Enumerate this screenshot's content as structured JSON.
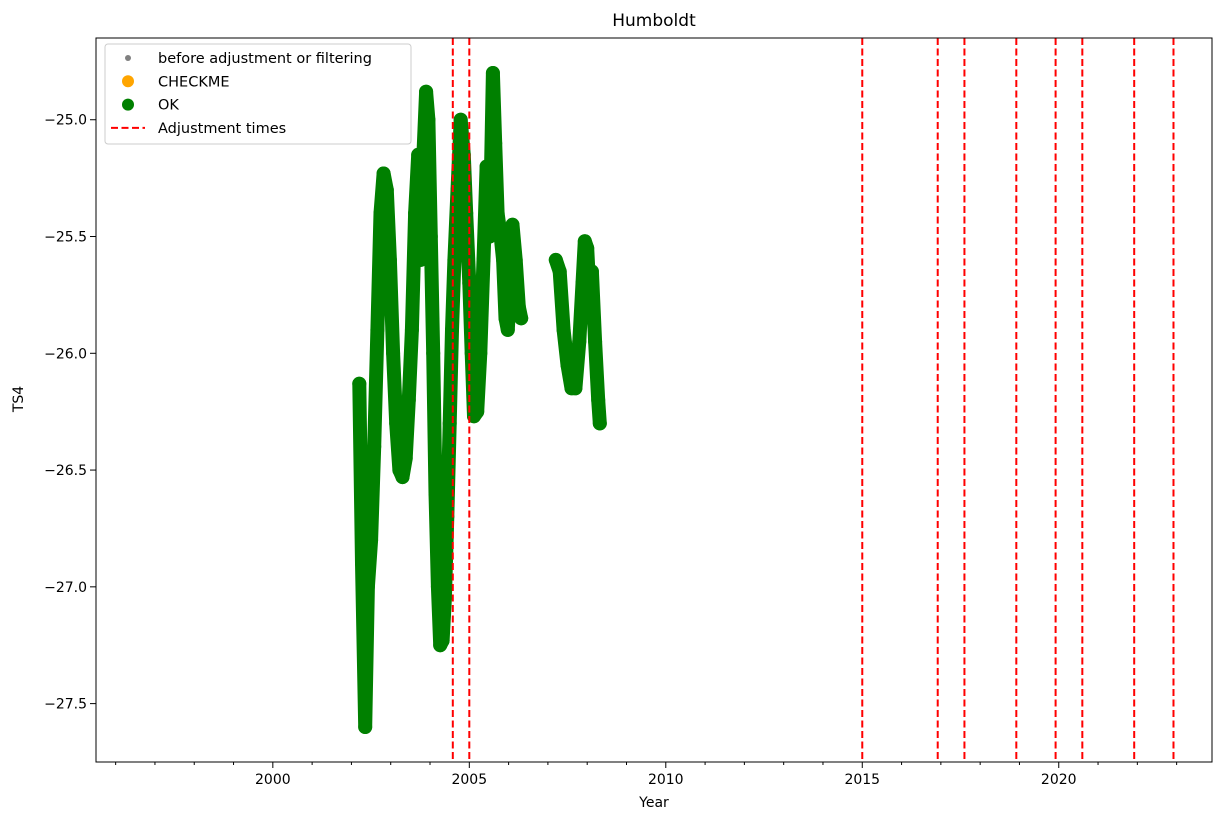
{
  "chart_data": {
    "type": "scatter",
    "title": "Humboldt",
    "xlabel": "Year",
    "ylabel": "TS4",
    "xlim": [
      1995.5,
      2023.9
    ],
    "ylim": [
      -27.75,
      -24.65
    ],
    "x_ticks": [
      2000,
      2005,
      2010,
      2015,
      2020
    ],
    "x_tick_labels": [
      "2000",
      "2005",
      "2010",
      "2015",
      "2020"
    ],
    "y_ticks": [
      -27.5,
      -27.0,
      -26.5,
      -26.0,
      -25.5,
      -25.0
    ],
    "y_tick_labels": [
      "−27.5",
      "−27.0",
      "−26.5",
      "−26.0",
      "−25.5",
      "−25.0"
    ],
    "grid": false,
    "legend": {
      "placement": "top-left",
      "entries": [
        {
          "label": "before adjustment or filtering",
          "marker": "small-dot",
          "color": "#808080"
        },
        {
          "label": "CHECKME",
          "marker": "dot",
          "color": "#ffa500"
        },
        {
          "label": "OK",
          "marker": "dot",
          "color": "#008000"
        },
        {
          "label": "Adjustment times",
          "marker": "dashed-line",
          "color": "#ff0000"
        }
      ]
    },
    "series": [
      {
        "name": "OK",
        "color": "#008000",
        "segments": [
          {
            "x": [
              2002.2,
              2002.27,
              2002.35,
              2002.42,
              2002.5,
              2002.58,
              2002.66,
              2002.74,
              2002.82,
              2002.9,
              2002.98,
              2003.06,
              2003.14,
              2003.22,
              2003.3,
              2003.38,
              2003.46,
              2003.54,
              2003.62,
              2003.7,
              2003.76,
              2003.82,
              2003.9,
              2003.96,
              2004.02,
              2004.08,
              2004.14,
              2004.2,
              2004.26,
              2004.32,
              2004.38,
              2004.44,
              2004.5,
              2004.56,
              2004.62,
              2004.7,
              2004.78,
              2004.86,
              2004.92,
              2005.0,
              2005.06,
              2005.12,
              2005.2,
              2005.28,
              2005.36,
              2005.44,
              2005.52,
              2005.6,
              2005.66,
              2005.72,
              2005.8,
              2005.86,
              2005.92,
              2005.98,
              2006.04,
              2006.1,
              2006.18,
              2006.26,
              2006.32
            ],
            "y": [
              -26.13,
              -26.9,
              -27.6,
              -27.0,
              -26.8,
              -26.4,
              -25.9,
              -25.4,
              -25.23,
              -25.3,
              -25.6,
              -26.0,
              -26.3,
              -26.5,
              -26.53,
              -26.45,
              -26.2,
              -25.9,
              -25.4,
              -25.15,
              -25.6,
              -25.2,
              -24.88,
              -25.0,
              -25.5,
              -26.0,
              -26.6,
              -27.0,
              -27.25,
              -27.23,
              -27.05,
              -26.7,
              -26.3,
              -25.9,
              -25.6,
              -25.3,
              -25.0,
              -25.15,
              -25.4,
              -25.7,
              -26.0,
              -26.27,
              -26.25,
              -26.0,
              -25.6,
              -25.2,
              -25.5,
              -24.8,
              -25.1,
              -25.4,
              -25.5,
              -25.6,
              -25.85,
              -25.9,
              -25.7,
              -25.45,
              -25.6,
              -25.8,
              -25.85
            ]
          },
          {
            "x": [
              2007.2,
              2007.3,
              2007.4,
              2007.5,
              2007.6,
              2007.7,
              2007.8,
              2007.88,
              2007.94,
              2008.0,
              2008.06,
              2008.12,
              2008.2,
              2008.28,
              2008.32
            ],
            "y": [
              -25.6,
              -25.65,
              -25.9,
              -26.05,
              -26.15,
              -26.15,
              -25.95,
              -25.7,
              -25.52,
              -25.55,
              -25.75,
              -25.65,
              -25.95,
              -26.2,
              -26.3
            ]
          }
        ]
      }
    ],
    "adjustment_times": [
      2004.58,
      2005.0,
      2015.0,
      2016.92,
      2017.6,
      2018.92,
      2019.92,
      2020.6,
      2021.92,
      2022.92
    ]
  }
}
